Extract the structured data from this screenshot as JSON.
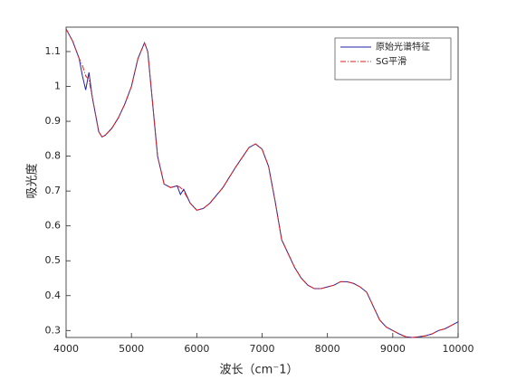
{
  "chart_data": {
    "type": "line",
    "x_label": "波长（cm⁻1）",
    "y_label": "吸光度",
    "x": [
      4000,
      4100,
      4200,
      4250,
      4300,
      4350,
      4400,
      4500,
      4550,
      4600,
      4700,
      4800,
      4900,
      5000,
      5100,
      5200,
      5250,
      5300,
      5400,
      5500,
      5600,
      5700,
      5750,
      5800,
      5900,
      6000,
      6100,
      6200,
      6400,
      6600,
      6800,
      6900,
      7000,
      7100,
      7200,
      7300,
      7400,
      7500,
      7600,
      7700,
      7800,
      7900,
      8000,
      8100,
      8200,
      8300,
      8400,
      8500,
      8600,
      8700,
      8800,
      8900,
      9000,
      9100,
      9200,
      9300,
      9400,
      9500,
      9600,
      9700,
      9800,
      9900,
      10000
    ],
    "series": [
      {
        "name": "原始光谱特征",
        "color": "#1f1fa8",
        "dash": "",
        "values": [
          1.165,
          1.13,
          1.08,
          1.03,
          0.99,
          1.04,
          0.97,
          0.87,
          0.855,
          0.86,
          0.88,
          0.91,
          0.95,
          1.0,
          1.08,
          1.125,
          1.1,
          1.0,
          0.8,
          0.72,
          0.71,
          0.715,
          0.69,
          0.705,
          0.665,
          0.645,
          0.65,
          0.665,
          0.71,
          0.77,
          0.825,
          0.835,
          0.82,
          0.77,
          0.67,
          0.56,
          0.52,
          0.48,
          0.45,
          0.43,
          0.42,
          0.42,
          0.425,
          0.43,
          0.44,
          0.44,
          0.435,
          0.425,
          0.41,
          0.37,
          0.33,
          0.31,
          0.3,
          0.29,
          0.282,
          0.28,
          0.282,
          0.285,
          0.29,
          0.3,
          0.305,
          0.315,
          0.325
        ]
      },
      {
        "name": "SG平滑",
        "color": "#e0201b",
        "dash": "6 2 1 2",
        "values": [
          1.165,
          1.13,
          1.08,
          1.06,
          1.03,
          1.02,
          0.97,
          0.87,
          0.855,
          0.86,
          0.88,
          0.91,
          0.95,
          1.0,
          1.08,
          1.125,
          1.1,
          1.0,
          0.8,
          0.72,
          0.71,
          0.715,
          0.71,
          0.7,
          0.665,
          0.645,
          0.65,
          0.665,
          0.71,
          0.77,
          0.825,
          0.835,
          0.82,
          0.77,
          0.67,
          0.56,
          0.52,
          0.48,
          0.45,
          0.43,
          0.42,
          0.42,
          0.425,
          0.43,
          0.44,
          0.44,
          0.435,
          0.425,
          0.41,
          0.37,
          0.33,
          0.31,
          0.3,
          0.29,
          0.282,
          0.28,
          0.282,
          0.285,
          0.29,
          0.3,
          0.305,
          0.315,
          0.325
        ]
      }
    ],
    "xlim": [
      4000,
      10000
    ],
    "xticks": [
      4000,
      5000,
      6000,
      7000,
      8000,
      9000,
      10000
    ],
    "ylim": [
      0.28,
      1.17
    ],
    "yticks": [
      0.3,
      0.4,
      0.5,
      0.6,
      0.7,
      0.8,
      0.9,
      1,
      1.1
    ],
    "legend": "top-right",
    "grid": false
  }
}
